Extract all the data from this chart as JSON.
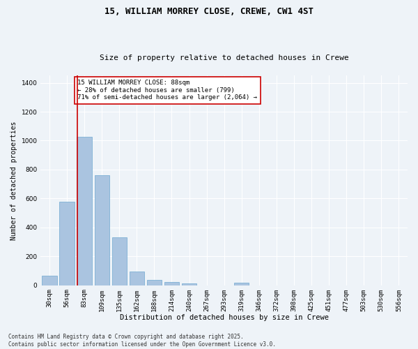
{
  "title1": "15, WILLIAM MORREY CLOSE, CREWE, CW1 4ST",
  "title2": "Size of property relative to detached houses in Crewe",
  "xlabel": "Distribution of detached houses by size in Crewe",
  "ylabel": "Number of detached properties",
  "categories": [
    "30sqm",
    "56sqm",
    "83sqm",
    "109sqm",
    "135sqm",
    "162sqm",
    "188sqm",
    "214sqm",
    "240sqm",
    "267sqm",
    "293sqm",
    "319sqm",
    "346sqm",
    "372sqm",
    "398sqm",
    "425sqm",
    "451sqm",
    "477sqm",
    "503sqm",
    "530sqm",
    "556sqm"
  ],
  "values": [
    65,
    580,
    1025,
    760,
    330,
    95,
    38,
    25,
    15,
    0,
    0,
    20,
    0,
    0,
    0,
    0,
    0,
    0,
    0,
    0,
    0
  ],
  "bar_color": "#aac4e0",
  "bar_edgecolor": "#6fa8d0",
  "vline_color": "#cc0000",
  "annotation_text": "15 WILLIAM MORREY CLOSE: 88sqm\n← 28% of detached houses are smaller (799)\n71% of semi-detached houses are larger (2,064) →",
  "annotation_box_color": "#cc0000",
  "ylim": [
    0,
    1450
  ],
  "yticks": [
    0,
    200,
    400,
    600,
    800,
    1000,
    1200,
    1400
  ],
  "bg_color": "#eef3f8",
  "grid_color": "#ffffff",
  "footnote": "Contains HM Land Registry data © Crown copyright and database right 2025.\nContains public sector information licensed under the Open Government Licence v3.0.",
  "title1_fontsize": 9,
  "title2_fontsize": 8,
  "annot_fontsize": 6.5,
  "ylabel_fontsize": 7,
  "xlabel_fontsize": 7.5,
  "tick_fontsize": 6.5,
  "footnote_fontsize": 5.5,
  "vline_bar_index": 1.6
}
